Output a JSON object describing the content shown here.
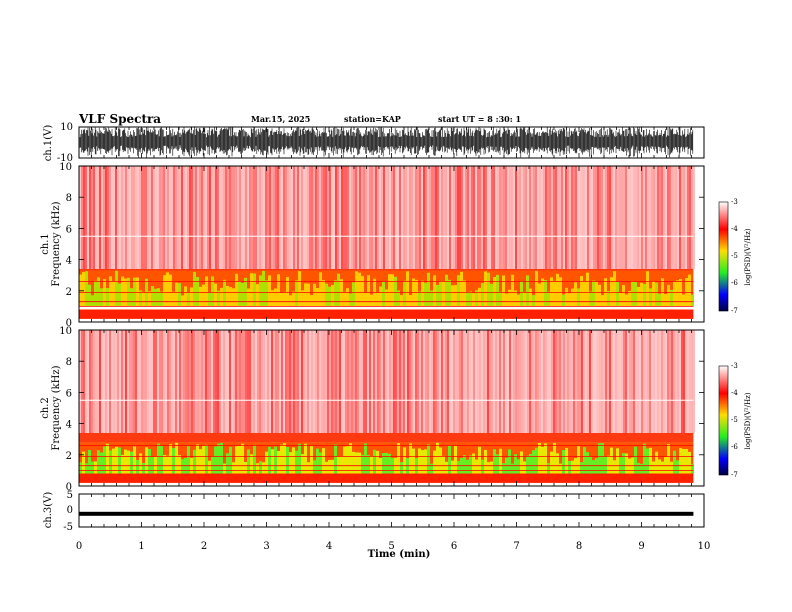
{
  "header": {
    "title": "VLF Spectra",
    "date": "Mar.15, 2025",
    "station": "station=KAP",
    "start": "start UT = 8 :30: 1"
  },
  "colors": {
    "spectrogram_stops": [
      "#ffffff",
      "#ff0000",
      "#ffdd00",
      "#22ee22",
      "#0000ff",
      "#000044"
    ],
    "waveform": "#000000"
  },
  "chart_data": [
    {
      "type": "line",
      "name": "ch1-waveform",
      "ylabel": "ch.1(V)",
      "ylim": [
        -10,
        10
      ],
      "yticks": [
        "10",
        "-10"
      ],
      "description_values": {
        "amplitude_min": -10,
        "amplitude_max": 10
      }
    },
    {
      "type": "heatmap",
      "name": "ch1-spectrogram",
      "ylabel_top": "ch.1",
      "ylabel": "Frequency (kHz)",
      "ylim": [
        0,
        10
      ],
      "yticks": [
        "0",
        "2",
        "4",
        "6",
        "8",
        "10"
      ],
      "bands_khz": [
        [
          0.2,
          0.8,
          "red"
        ],
        [
          1.0,
          3.3,
          "yellow-green"
        ]
      ],
      "colorbar": {
        "label": "log(PSD)(V²/Hz)",
        "range": [
          -7,
          -3
        ],
        "ticks": [
          "-3",
          "-4",
          "-5",
          "-6",
          "-7"
        ]
      }
    },
    {
      "type": "heatmap",
      "name": "ch2-spectrogram",
      "ylabel_top": "ch.2",
      "ylabel": "Frequency (kHz)",
      "ylim": [
        0,
        10
      ],
      "yticks": [
        "0",
        "2",
        "4",
        "6",
        "8",
        "10"
      ],
      "bands_khz": [
        [
          0.2,
          0.8,
          "red"
        ],
        [
          0.8,
          2.8,
          "green-yellow"
        ]
      ],
      "colorbar": {
        "label": "log(PSD)(V²/Hz)",
        "range": [
          -7,
          -3
        ],
        "ticks": [
          "-3",
          "-4",
          "-5",
          "-6",
          "-7"
        ]
      }
    },
    {
      "type": "line",
      "name": "ch3-waveform",
      "ylabel": "ch.3(V)",
      "ylim": [
        -5,
        5
      ],
      "yticks": [
        "5",
        "0",
        "-5"
      ],
      "description_values": {
        "level": -1,
        "amplitude": 0.6
      }
    }
  ],
  "xaxis": {
    "label": "Time (min)",
    "xlim": [
      0,
      10
    ],
    "ticks": [
      "0",
      "1",
      "2",
      "3",
      "4",
      "5",
      "6",
      "7",
      "8",
      "9",
      "10"
    ],
    "data_end_min": 9.83
  }
}
